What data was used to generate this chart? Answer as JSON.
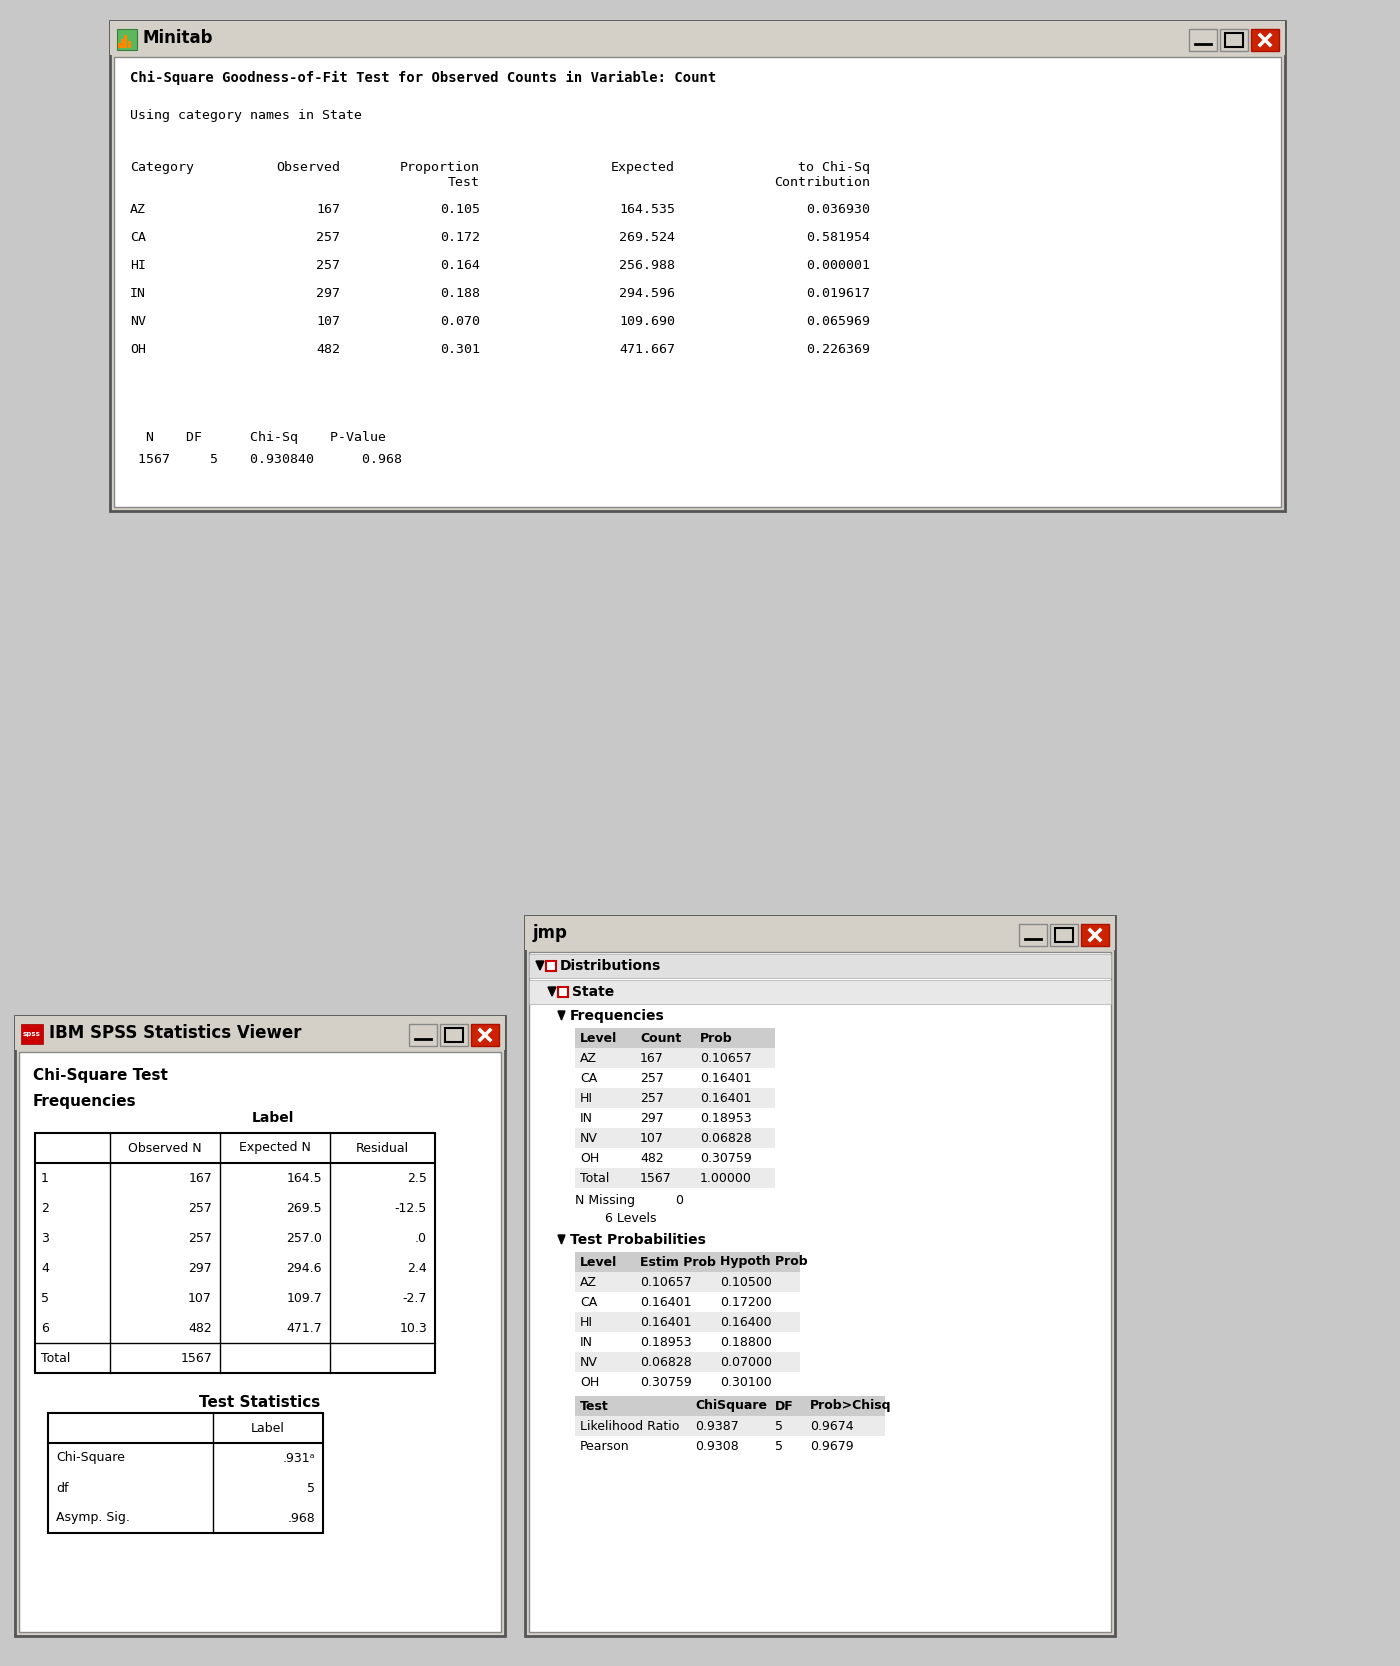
{
  "bg_color": "#c8c8c8",
  "minitab": {
    "title": "Minitab",
    "content_title": "Chi-Square Goodness-of-Fit Test for Observed Counts in Variable: Count",
    "subtitle": "Using category names in State",
    "rows": [
      [
        "AZ",
        "167",
        "0.105",
        "164.535",
        "0.036930"
      ],
      [
        "CA",
        "257",
        "0.172",
        "269.524",
        "0.581954"
      ],
      [
        "HI",
        "257",
        "0.164",
        "256.988",
        "0.000001"
      ],
      [
        "IN",
        "297",
        "0.188",
        "294.596",
        "0.019617"
      ],
      [
        "NV",
        "107",
        "0.070",
        "109.690",
        "0.065969"
      ],
      [
        "OH",
        "482",
        "0.301",
        "471.667",
        "0.226369"
      ]
    ],
    "footer_headers": [
      "N",
      "DF",
      "Chi-Sq",
      "P-Value"
    ],
    "footer_vals": [
      "1567",
      "5",
      "0.930840",
      "0.968"
    ]
  },
  "spss": {
    "title": "IBM SPSS Statistics Viewer",
    "freq_rows": [
      [
        "1",
        "167",
        "164.5",
        "2.5"
      ],
      [
        "2",
        "257",
        "269.5",
        "-12.5"
      ],
      [
        "3",
        "257",
        "257.0",
        ".0"
      ],
      [
        "4",
        "297",
        "294.6",
        "2.4"
      ],
      [
        "5",
        "107",
        "109.7",
        "-2.7"
      ],
      [
        "6",
        "482",
        "471.7",
        "10.3"
      ],
      [
        "Total",
        "1567",
        "",
        ""
      ]
    ],
    "test_rows": [
      [
        "Chi-Square",
        ".931ᵃ"
      ],
      [
        "df",
        "5"
      ],
      [
        "Asymp. Sig.",
        ".968"
      ]
    ]
  },
  "jmp": {
    "title": "jmp",
    "freq_rows": [
      [
        "AZ",
        "167",
        "0.10657"
      ],
      [
        "CA",
        "257",
        "0.16401"
      ],
      [
        "HI",
        "257",
        "0.16401"
      ],
      [
        "IN",
        "297",
        "0.18953"
      ],
      [
        "NV",
        "107",
        "0.06828"
      ],
      [
        "OH",
        "482",
        "0.30759"
      ],
      [
        "Total",
        "1567",
        "1.00000"
      ]
    ],
    "test_prob_rows": [
      [
        "AZ",
        "0.10657",
        "0.10500"
      ],
      [
        "CA",
        "0.16401",
        "0.17200"
      ],
      [
        "HI",
        "0.16401",
        "0.16400"
      ],
      [
        "IN",
        "0.18953",
        "0.18800"
      ],
      [
        "NV",
        "0.06828",
        "0.07000"
      ],
      [
        "OH",
        "0.30759",
        "0.30100"
      ]
    ],
    "test_stat_rows": [
      [
        "Likelihood Ratio",
        "0.9387",
        "5",
        "0.9674"
      ],
      [
        "Pearson",
        "0.9308",
        "5",
        "0.9679"
      ]
    ]
  }
}
